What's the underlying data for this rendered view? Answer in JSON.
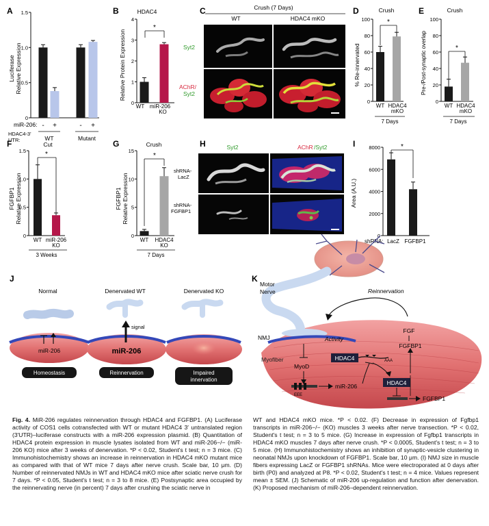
{
  "colors": {
    "black_bar": "#1a1a1a",
    "light_blue": "#b8c6ea",
    "crimson": "#b5174a",
    "gray_bar": "#a6a6a6",
    "green": "#35a32f",
    "red": "#d7263d",
    "blue_field": "#1b2ca0",
    "muscle_pink": "#e98080",
    "muscle_dark": "#b8343a",
    "nerve_blue": "#c9d9f0"
  },
  "panelA": {
    "letter": "A",
    "ylabel": [
      "Luciferase",
      "Relative Expression"
    ],
    "mir_label": "miR-206:",
    "signs": [
      "-",
      "+",
      "-",
      "+"
    ],
    "utr_label": [
      "HDAC4-3'",
      "UTR:"
    ],
    "groups": [
      "WT",
      "Mutant"
    ],
    "yticks": [
      "0",
      "0.5",
      "1.0",
      "1.5"
    ]
  },
  "panelB": {
    "letter": "B",
    "title": "HDAC4",
    "ylabel": "Relative Protein Expression",
    "xlabels": [
      "WT",
      "miR-206",
      "KO"
    ],
    "yticks": [
      "0",
      "1",
      "2",
      "3",
      "4"
    ],
    "sig": "*"
  },
  "panelC": {
    "letter": "C",
    "title": "Crush (7 Days)",
    "cols": [
      "WT",
      "HDAC4 mKO"
    ],
    "row1": "Syt2",
    "row2a": "AChR/",
    "row2b": "Syt2"
  },
  "panelD": {
    "letter": "D",
    "title": "Crush",
    "ylabel": "% Re-innervated",
    "xlabels": [
      "WT",
      "HDAC4",
      "mKO"
    ],
    "footer": "7 Days",
    "yticks": [
      "0",
      "20",
      "40",
      "60",
      "80",
      "100"
    ],
    "sig": "*"
  },
  "panelE": {
    "letter": "E",
    "title": "Crush",
    "ylabel": "Pre-/Post-synaptic overlap",
    "xlabels": [
      "WT",
      "HDAC4",
      "mKO"
    ],
    "footer": "7 Days",
    "yticks": [
      "0",
      "20",
      "40",
      "60",
      "80",
      "100"
    ],
    "sig": "*"
  },
  "panelF": {
    "letter": "F",
    "title": "Cut",
    "ylabel": [
      "FGFBP1",
      "Relative Expression"
    ],
    "xlabels": [
      "WT",
      "miR-206",
      "KO"
    ],
    "footer": "3 Weeks",
    "yticks": [
      "0",
      "0.5",
      "1.0",
      "1.5"
    ],
    "sig": "*"
  },
  "panelG": {
    "letter": "G",
    "title": "Crush",
    "ylabel": [
      "FGFBP1",
      "Relative Expression"
    ],
    "xlabels": [
      "WT",
      "HDAC4",
      "KO"
    ],
    "footer": "7 Days",
    "yticks": [
      "0",
      "5",
      "10",
      "15"
    ],
    "sig": "*"
  },
  "panelH": {
    "letter": "H",
    "col1": "Syt2",
    "col2a": "AChR",
    "col2b": "/Syt2",
    "row1": [
      "shRNA-",
      "LacZ"
    ],
    "row2": [
      "shRNA-",
      "FGFBP1"
    ]
  },
  "panelI": {
    "letter": "I",
    "ylabel": "Area (A.U.)",
    "xlabels": [
      "shRNA:",
      "LacZ",
      "FGFBP1"
    ],
    "yticks": [
      "0",
      "2000",
      "4000",
      "6000",
      "8000"
    ],
    "sig": "*"
  },
  "panelJ": {
    "letter": "J",
    "normal": "Normal",
    "denervated_wt": "Denervated WT",
    "denervated_ko": "Denervated KO",
    "signal": "signal",
    "mir_small": "miR-206",
    "mir_big": "miR-206",
    "box1": "Homeostasis",
    "box2": "Reinnervation",
    "box3": [
      "Impaired",
      "innervation"
    ]
  },
  "panelK": {
    "letter": "K",
    "motor": [
      "Motor",
      "Nerve"
    ],
    "reinnervation": "Reinnervation",
    "activity": "Activity",
    "nmj": "NMJ",
    "myofiber": "Myofiber",
    "myod": "MyoD",
    "eee": "EEE",
    "mir": "miR-206",
    "hdac4a": "HDAC4",
    "aaa": "AAA",
    "hdac4b": "HDAC4",
    "fgfbp1a": "FGFBP1",
    "fgfbp1b": "FGFBP1",
    "fgf": "FGF"
  },
  "caption": {
    "fig_label": "Fig. 4.",
    "left": "MiR-206 regulates reinnervation through HDAC4 and FGFBP1. (A) Luciferase activity of COS1 cells cotransfected with WT or mutant HDAC4 3′ untranslated region (3′UTR)–luciferase constructs with a miR-206 expression plasmid. (B) Quantitation of HDAC4 protein expression in muscle lysates isolated from WT and miR-206−/− (miR-206 KO) mice after 3 weeks of denervation. *P < 0.02, Student's t test; n = 3 mice. (C) Immunohistochemistry shows an increase in reinnervation in HDAC4 mKO mutant mice as compared with that of WT mice 7 days after nerve crush. Scale bar, 10 μm. (D) Number of reinnervated NMJs in WT and HDAC4 mKO mice after sciatic nerve crush for 7 days. *P < 0.05, Student's t test; n = 3 to 8 mice. (E) Postsynaptic area occupied by the reinnervating nerve (in percent) 7 days after crushing the sciatic nerve in",
    "right": "WT and HDAC4 mKO mice. *P < 0.02. (F) Decrease in expression of Fgfbp1 transcripts in miR-206−/− (KO) muscles 3 weeks after nerve transection. *P < 0.02, Student's t test; n = 3 to 5 mice. (G) Increase in expression of Fgfbp1 transcripts in HDAC4 mKO muscles 7 days after nerve crush. *P < 0.0005, Student's t test; n = 3 to 5 mice. (H) Immunohistochemistry shows an inhibition of synaptic-vesicle clustering in neonatal NMJs upon knockdown of FGFBP1. Scale bar, 10 μm. (I) NMJ size in muscle fibers expressing LacZ or FGFBP1 shRNAs. Mice were electroporated at 0 days after birth (P0) and analyzed at P8. *P < 0.02, Student's t test; n = 4 mice. Values represent mean ± SEM. (J) Schematic of miR-206 up-regulation and function after denervation. (K) Proposed mechanism of miR-206–dependent reinnervation."
  },
  "chart_data": [
    {
      "type": "bar",
      "panel": "A",
      "categories": [
        "WT -",
        "WT +",
        "Mutant -",
        "Mutant +"
      ],
      "values": [
        1.0,
        0.38,
        1.0,
        1.08
      ],
      "errors": [
        0.04,
        0.05,
        0.04,
        0.02
      ],
      "ylim": [
        0,
        1.5
      ]
    },
    {
      "type": "bar",
      "panel": "B",
      "categories": [
        "WT",
        "miR-206 KO"
      ],
      "values": [
        1.0,
        2.8
      ],
      "errors": [
        0.2,
        0.08
      ],
      "ylim": [
        0,
        4
      ]
    },
    {
      "type": "bar",
      "panel": "D",
      "categories": [
        "WT",
        "HDAC4 mKO"
      ],
      "values": [
        60,
        79
      ],
      "errors": [
        7,
        5
      ],
      "ylim": [
        0,
        100
      ]
    },
    {
      "type": "bar",
      "panel": "E",
      "categories": [
        "WT",
        "HDAC4 mKO"
      ],
      "values": [
        18,
        47
      ],
      "errors": [
        9,
        7
      ],
      "ylim": [
        0,
        100
      ]
    },
    {
      "type": "bar",
      "panel": "F",
      "categories": [
        "WT",
        "miR-206 KO"
      ],
      "values": [
        1.0,
        0.36
      ],
      "errors": [
        0.25,
        0.04
      ],
      "ylim": [
        0,
        1.5
      ]
    },
    {
      "type": "bar",
      "panel": "G",
      "categories": [
        "WT",
        "HDAC4 KO"
      ],
      "values": [
        0.8,
        10.5
      ],
      "errors": [
        0.3,
        1.5
      ],
      "ylim": [
        0,
        15
      ]
    },
    {
      "type": "bar",
      "panel": "I",
      "categories": [
        "LacZ",
        "FGFBP1"
      ],
      "values": [
        6900,
        4200
      ],
      "errors": [
        600,
        650
      ],
      "ylim": [
        0,
        8000
      ]
    }
  ]
}
